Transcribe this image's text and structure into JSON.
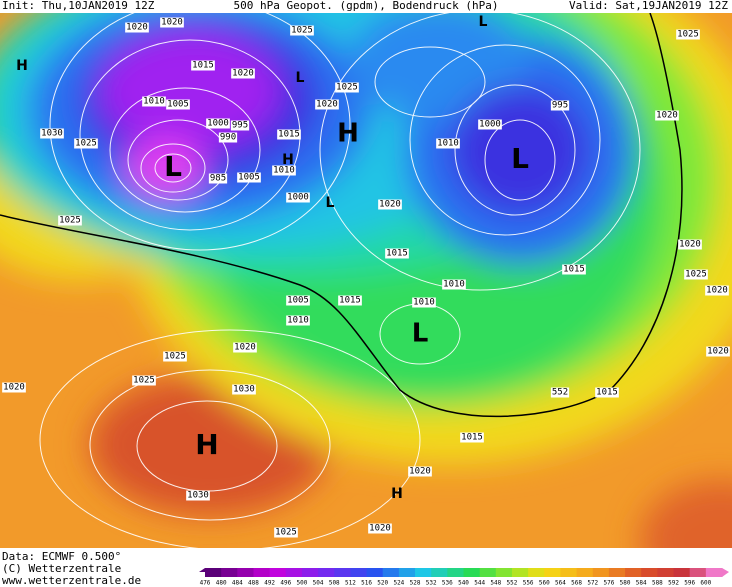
{
  "header": {
    "init": "Init: Thu,10JAN2019 12Z",
    "title": "500 hPa Geopot. (gpdm), Bodendruck (hPa)",
    "valid": "Valid: Sat,19JAN2019 12Z"
  },
  "footer": {
    "data": "Data: ECMWF  0.500°",
    "copyright": "(C) Wetterzentrale",
    "url": "www.wetterzentrale.de"
  },
  "colorbar": {
    "ticks": [
      476,
      480,
      484,
      488,
      492,
      496,
      500,
      504,
      508,
      512,
      516,
      520,
      524,
      528,
      532,
      536,
      540,
      544,
      548,
      552,
      556,
      560,
      564,
      568,
      572,
      576,
      580,
      584,
      588,
      592,
      596,
      600
    ]
  },
  "isobar_labels": [
    1020,
    1020,
    1025,
    1015,
    1020,
    1025,
    1020,
    1010,
    1005,
    1030,
    1025,
    1000,
    995,
    990,
    1015,
    1000,
    995,
    1020,
    1010,
    985,
    1005,
    1010,
    1000,
    1020,
    1025,
    1025,
    1015,
    1015,
    1020,
    1025,
    1010,
    1005,
    1015,
    1010,
    1010,
    1020,
    1020,
    1025,
    1020,
    1025,
    1030,
    1020,
    552,
    1015,
    1015,
    1020,
    1030,
    1025,
    1020
  ],
  "pressure_centers": [
    "H",
    "L",
    "H",
    "L",
    "L",
    "H",
    "L",
    "L",
    "H",
    "H",
    "L"
  ]
}
